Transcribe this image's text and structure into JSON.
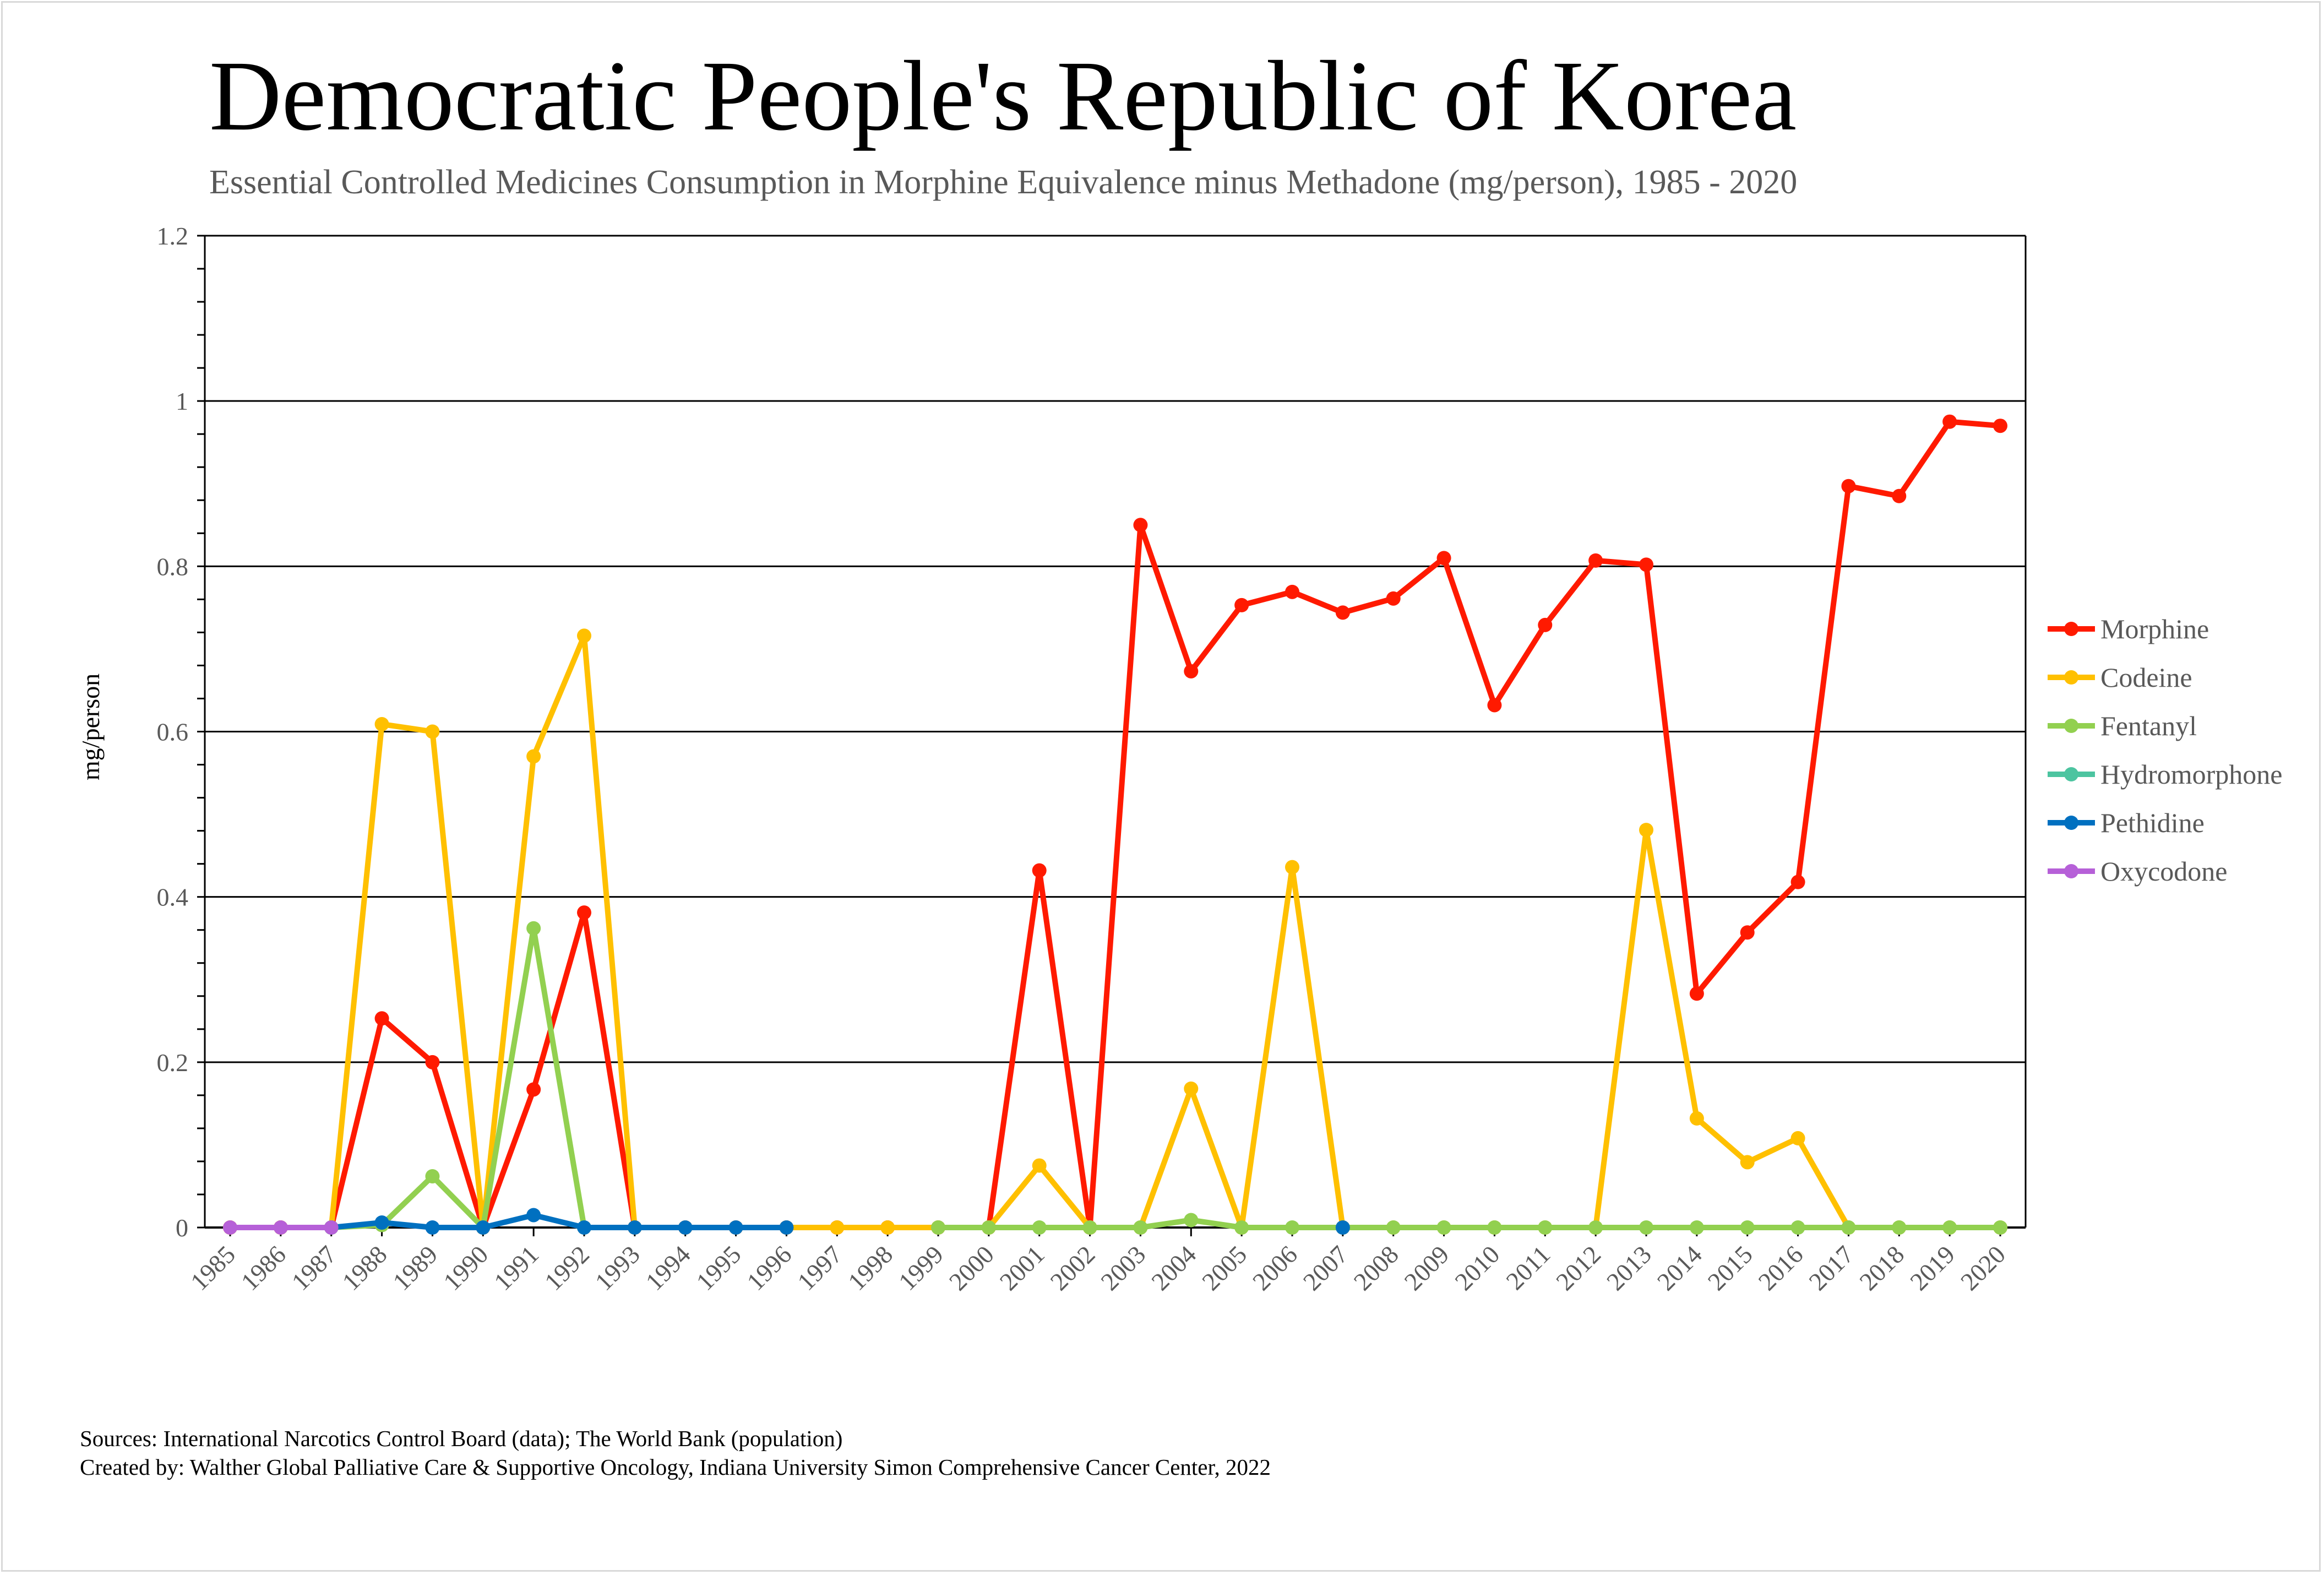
{
  "title": "Democratic People's Republic of Korea",
  "subtitle": "Essential Controlled Medicines Consumption in Morphine Equivalence minus Methadone (mg/person), 1985 - 2020",
  "sources": "Sources: International Narcotics Control Board (data); The World Bank (population)",
  "created_by": "Created by: Walther Global Palliative Care & Supportive Oncology, Indiana University Simon Comprehensive Cancer Center, 2022",
  "chart_data": {
    "type": "line",
    "title": "Democratic People's Republic of Korea",
    "xlabel": "",
    "ylabel": "mg/person",
    "ylim": [
      0,
      1.2
    ],
    "yticks": [
      "0",
      "0.2",
      "0.4",
      "0.6",
      "0.8",
      "1",
      "1.2"
    ],
    "grid": "horizontal major",
    "legend": "right",
    "x": [
      "1985",
      "1986",
      "1987",
      "1988",
      "1989",
      "1990",
      "1991",
      "1992",
      "1993",
      "1994",
      "1995",
      "1996",
      "1997",
      "1998",
      "1999",
      "2000",
      "2001",
      "2002",
      "2003",
      "2004",
      "2005",
      "2006",
      "2007",
      "2008",
      "2009",
      "2010",
      "2011",
      "2012",
      "2013",
      "2014",
      "2015",
      "2016",
      "2017",
      "2018",
      "2019",
      "2020"
    ],
    "series": [
      {
        "name": "Morphine",
        "color": "#FF1A00",
        "values": [
          0,
          0,
          0,
          0.253,
          0.2,
          0,
          0.167,
          0.381,
          0,
          0,
          0,
          0,
          0,
          0,
          0,
          0,
          0.432,
          0,
          0.85,
          0.673,
          0.753,
          0.769,
          0.744,
          0.761,
          0.81,
          0.632,
          0.729,
          0.807,
          0.802,
          0.283,
          0.357,
          0.418,
          0.897,
          0.885,
          0.975,
          0.97
        ]
      },
      {
        "name": "Codeine",
        "color": "#FFC000",
        "values": [
          0,
          0,
          0,
          0.609,
          0.6,
          0,
          0.57,
          0.716,
          0,
          0,
          0,
          0,
          0,
          0,
          0,
          0,
          0.075,
          0,
          0,
          0.168,
          0,
          0.436,
          0,
          0,
          0,
          0,
          0,
          0,
          0.481,
          0.132,
          0.079,
          0.108,
          0,
          0,
          0,
          0
        ]
      },
      {
        "name": "Fentanyl",
        "color": "#92D050",
        "values": [
          null,
          null,
          0,
          0.003,
          0.062,
          0,
          0.362,
          0,
          null,
          null,
          null,
          null,
          null,
          null,
          0,
          0,
          0,
          0,
          0,
          0.009,
          0,
          0,
          0,
          0,
          0,
          0,
          0,
          0,
          0,
          0,
          0,
          0,
          0,
          0,
          0,
          0
        ]
      },
      {
        "name": "Hydromorphone",
        "color": "#4CC4A0",
        "values": [
          null,
          null,
          null,
          null,
          null,
          null,
          null,
          null,
          null,
          null,
          null,
          null,
          null,
          null,
          null,
          null,
          null,
          null,
          null,
          null,
          null,
          null,
          null,
          null,
          null,
          null,
          null,
          null,
          null,
          null,
          null,
          null,
          null,
          null,
          null,
          null
        ]
      },
      {
        "name": "Pethidine",
        "color": "#0070C0",
        "values": [
          null,
          null,
          0,
          0.006,
          0,
          0,
          0.015,
          0,
          0,
          0,
          0,
          0,
          null,
          null,
          null,
          null,
          null,
          null,
          null,
          null,
          null,
          null,
          0,
          null,
          null,
          null,
          null,
          null,
          null,
          null,
          null,
          null,
          null,
          null,
          null,
          null
        ]
      },
      {
        "name": "Oxycodone",
        "color": "#B660D8",
        "values": [
          0,
          0,
          0,
          null,
          null,
          null,
          null,
          null,
          null,
          null,
          null,
          null,
          null,
          null,
          null,
          null,
          null,
          null,
          null,
          null,
          null,
          null,
          null,
          null,
          null,
          null,
          null,
          null,
          null,
          null,
          null,
          null,
          null,
          null,
          null,
          null
        ]
      }
    ]
  }
}
